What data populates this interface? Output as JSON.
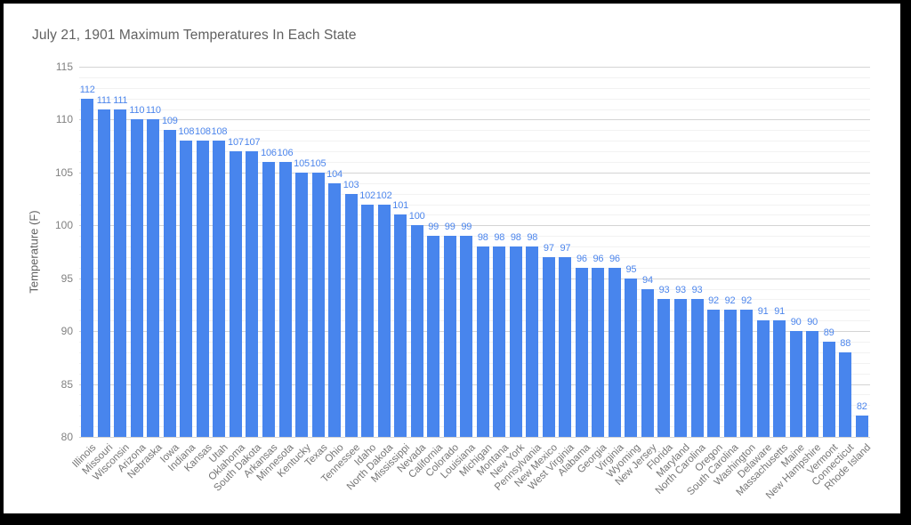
{
  "frame": {
    "background_color": "#ffffff",
    "border_color": "#000000"
  },
  "chart_data": {
    "type": "bar",
    "title": "July 21, 1901 Maximum Temperatures In Each State",
    "xlabel": "",
    "ylabel": "Temperature (F)",
    "ylim": [
      80,
      115
    ],
    "y_ticks": [
      80,
      85,
      90,
      95,
      100,
      105,
      110,
      115
    ],
    "y_minor_step": 1,
    "y_major_step": 5,
    "grid": true,
    "legend": "none",
    "bar_color": "#4885ed",
    "value_label_color": "#4d86ec",
    "categories": [
      "Illinois",
      "Missouri",
      "Wisconsin",
      "Arizona",
      "Nebraska",
      "Iowa",
      "Indiana",
      "Kansas",
      "Utah",
      "Oklahoma",
      "South Dakota",
      "Arkansas",
      "Minnesota",
      "Kentucky",
      "Texas",
      "Ohio",
      "Tennessee",
      "Idaho",
      "North Dakota",
      "Mississippi",
      "Nevada",
      "California",
      "Colorado",
      "Louisiana",
      "Michigan",
      "Montana",
      "New York",
      "Pennsylvania",
      "New Mexico",
      "West Virginia",
      "Alabama",
      "Georgia",
      "Virginia",
      "Wyoming",
      "New Jersey",
      "Florida",
      "Maryland",
      "North Carolina",
      "Oregon",
      "South Carolina",
      "Washington",
      "Delaware",
      "Massachusetts",
      "Maine",
      "New Hampshire",
      "Vermont",
      "Connecticut",
      "Rhode Island"
    ],
    "values": [
      112,
      111,
      111,
      110,
      110,
      109,
      108,
      108,
      108,
      107,
      107,
      106,
      106,
      105,
      105,
      104,
      103,
      102,
      102,
      101,
      100,
      99,
      99,
      99,
      98,
      98,
      98,
      98,
      97,
      97,
      96,
      96,
      96,
      95,
      94,
      93,
      93,
      93,
      92,
      92,
      92,
      91,
      91,
      90,
      90,
      89,
      88,
      82
    ]
  }
}
